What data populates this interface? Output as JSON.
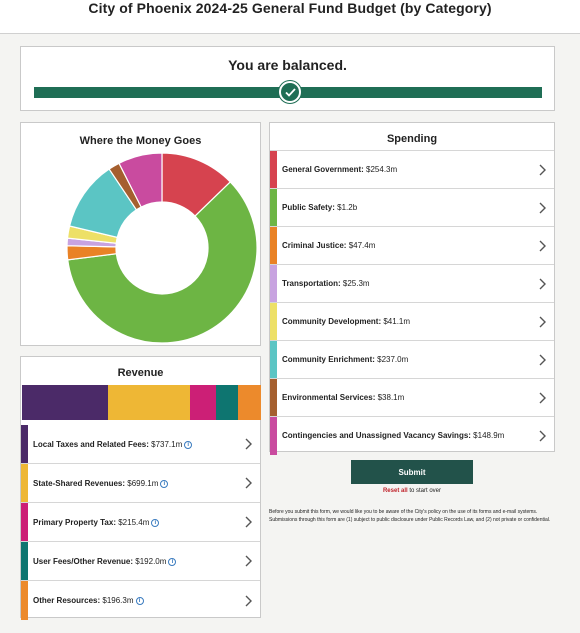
{
  "page": {
    "title": "City of Phoenix 2024-25 General Fund Budget (by Category)"
  },
  "balance": {
    "message": "You are balanced.",
    "icon": "check-icon",
    "bar_color": "#1f6e55"
  },
  "money_chart": {
    "title": "Where the Money Goes"
  },
  "chart_data": {
    "type": "pie",
    "title": "Where the Money Goes",
    "donut": true,
    "categories": [
      "General Government",
      "Public Safety",
      "Criminal Justice",
      "Transportation",
      "Community Development",
      "Community Enrichment",
      "Environmental Services",
      "Contingencies and Unassigned Vacancy Savings"
    ],
    "values": [
      254.3,
      1200,
      47.4,
      25.3,
      41.1,
      237.0,
      38.1,
      148.9
    ],
    "colors": [
      "#d6434f",
      "#6db544",
      "#e98226",
      "#c8a3e0",
      "#ede067",
      "#5bc5c4",
      "#a55f2f",
      "#c94b9f"
    ]
  },
  "spending": {
    "title": "Spending",
    "items": [
      {
        "label": "General Government:",
        "value": "$254.3m",
        "color": "#d6434f"
      },
      {
        "label": "Public Safety:",
        "value": "$1.2b",
        "color": "#6db544"
      },
      {
        "label": "Criminal Justice:",
        "value": "$47.4m",
        "color": "#e98226"
      },
      {
        "label": "Transportation:",
        "value": "$25.3m",
        "color": "#c8a3e0"
      },
      {
        "label": "Community Development:",
        "value": "$41.1m",
        "color": "#ede067"
      },
      {
        "label": "Community Enrichment:",
        "value": "$237.0m",
        "color": "#5bc5c4"
      },
      {
        "label": "Environmental Services:",
        "value": "$38.1m",
        "color": "#a55f2f"
      },
      {
        "label": "Contingencies and Unassigned Vacancy Savings:",
        "value": "$148.9m",
        "color": "#c94b9f"
      }
    ]
  },
  "revenue": {
    "title": "Revenue",
    "items": [
      {
        "label": "Local Taxes and Related Fees:",
        "value": "$737.1m",
        "amount": 737.1,
        "color": "#4b2a68"
      },
      {
        "label": "State-Shared Revenues:",
        "value": "$699.1m",
        "amount": 699.1,
        "color": "#eeb735"
      },
      {
        "label": "Primary Property Tax:",
        "value": "$215.4m",
        "amount": 215.4,
        "color": "#cc1f76"
      },
      {
        "label": "User Fees/Other Revenue:",
        "value": "$192.0m",
        "amount": 192.0,
        "color": "#0e7570"
      },
      {
        "label": "Other Resources:",
        "value": "$196.3m",
        "amount": 196.3,
        "color": "#ec8a2c"
      }
    ]
  },
  "actions": {
    "submit_label": "Submit",
    "reset_link": "Reset all",
    "reset_suffix": " to start over",
    "disclaimer": "Before you submit this form, we would like you to be aware of the City's policy on the use of its forms and e-mail systems. Submissions through this form are (1) subject to public disclosure under Public Records Law, and (2) not private or confidential."
  }
}
